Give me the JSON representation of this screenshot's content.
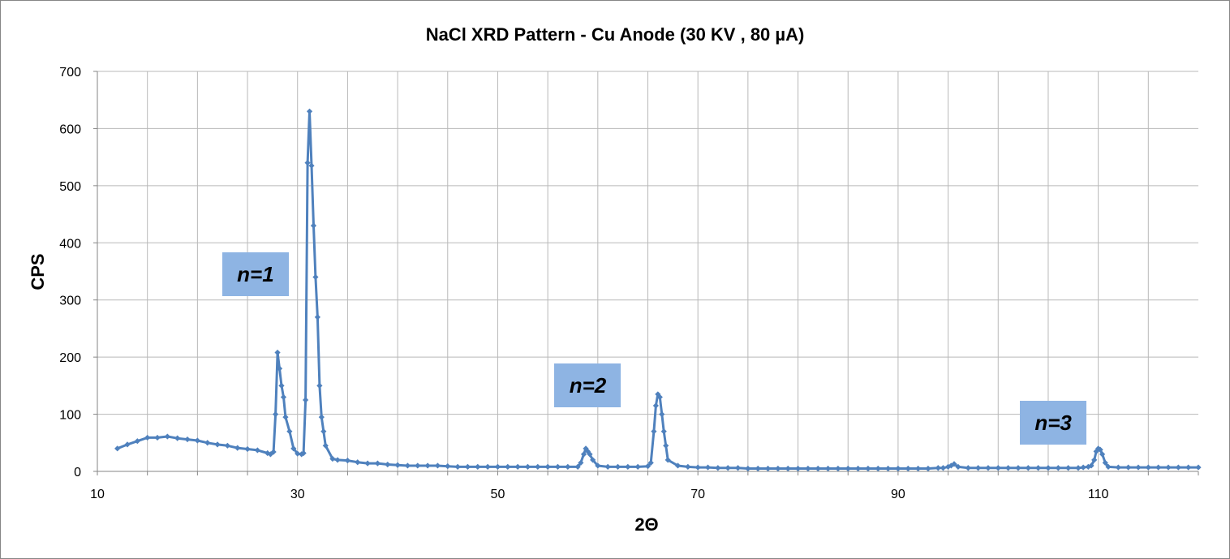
{
  "chart_data": {
    "type": "line",
    "title": "NaCl XRD Pattern - Cu Anode (30 KV , 80 µA)",
    "xlabel": "2Θ",
    "ylabel": "CPS",
    "xlim": [
      10,
      120
    ],
    "ylim": [
      0,
      700
    ],
    "xticks": [
      10,
      30,
      50,
      70,
      90,
      110
    ],
    "yticks": [
      0,
      100,
      200,
      300,
      400,
      500,
      600,
      700
    ],
    "grid": true,
    "line_color": "#4f81bd",
    "annotation_color": "#8eb4e3",
    "annotations": [
      {
        "text": "n=1",
        "x": 25.8,
        "y": 345
      },
      {
        "text": "n=2",
        "x": 59.0,
        "y": 150
      },
      {
        "text": "n=3",
        "x": 105.5,
        "y": 85
      }
    ],
    "series": [
      {
        "x": [
          12,
          13,
          14,
          15,
          16,
          17,
          18,
          19,
          20,
          21,
          22,
          23,
          24,
          25,
          26,
          27,
          27.3,
          27.6,
          27.8,
          28.0,
          28.2,
          28.4,
          28.6,
          28.8,
          29.2,
          29.6,
          30.0,
          30.4,
          30.6,
          30.8,
          31.0,
          31.2,
          31.4,
          31.6,
          31.8,
          32.0,
          32.2,
          32.4,
          32.6,
          32.8,
          33.5,
          34.0,
          35,
          36,
          37,
          38,
          39,
          40,
          41,
          42,
          43,
          44,
          45,
          46,
          47,
          48,
          49,
          50,
          51,
          52,
          53,
          54,
          55,
          56,
          57,
          58,
          58.3,
          58.6,
          58.8,
          59.0,
          59.2,
          59.5,
          60,
          61,
          62,
          63,
          64,
          65,
          65.3,
          65.6,
          65.8,
          66.0,
          66.2,
          66.4,
          66.6,
          66.8,
          67,
          68,
          69,
          70,
          71,
          72,
          73,
          74,
          75,
          76,
          77,
          78,
          79,
          80,
          81,
          82,
          83,
          84,
          85,
          86,
          87,
          88,
          89,
          90,
          91,
          92,
          93,
          94,
          94.5,
          95,
          95.3,
          95.6,
          96,
          97,
          98,
          99,
          100,
          101,
          102,
          103,
          104,
          105,
          106,
          107,
          108,
          108.5,
          109,
          109.3,
          109.6,
          109.8,
          110.0,
          110.2,
          110.4,
          110.7,
          111,
          112,
          113,
          114,
          115,
          116,
          117,
          118,
          119,
          120
        ],
        "y": [
          40,
          47,
          53,
          59,
          59,
          61,
          58,
          56,
          54,
          50,
          47,
          45,
          41,
          39,
          37,
          32,
          30,
          34,
          100,
          208,
          180,
          150,
          130,
          95,
          70,
          40,
          31,
          30,
          32,
          125,
          540,
          630,
          535,
          430,
          340,
          270,
          150,
          95,
          70,
          45,
          22,
          20,
          19,
          16,
          14,
          14,
          12,
          11,
          10,
          10,
          10,
          10,
          9,
          8,
          8,
          8,
          8,
          8,
          8,
          8,
          8,
          8,
          8,
          8,
          8,
          8,
          15,
          30,
          40,
          35,
          30,
          20,
          10,
          8,
          8,
          8,
          8,
          9,
          15,
          70,
          115,
          135,
          130,
          100,
          70,
          45,
          20,
          10,
          8,
          7,
          7,
          6,
          6,
          6,
          5,
          5,
          5,
          5,
          5,
          5,
          5,
          5,
          5,
          5,
          5,
          5,
          5,
          5,
          5,
          5,
          5,
          5,
          5,
          6,
          6,
          8,
          10,
          13,
          8,
          6,
          6,
          6,
          6,
          6,
          6,
          6,
          6,
          6,
          6,
          6,
          6,
          7,
          8,
          10,
          20,
          35,
          40,
          38,
          30,
          15,
          8,
          7,
          7,
          7,
          7,
          7,
          7,
          7,
          7,
          7
        ]
      }
    ]
  }
}
